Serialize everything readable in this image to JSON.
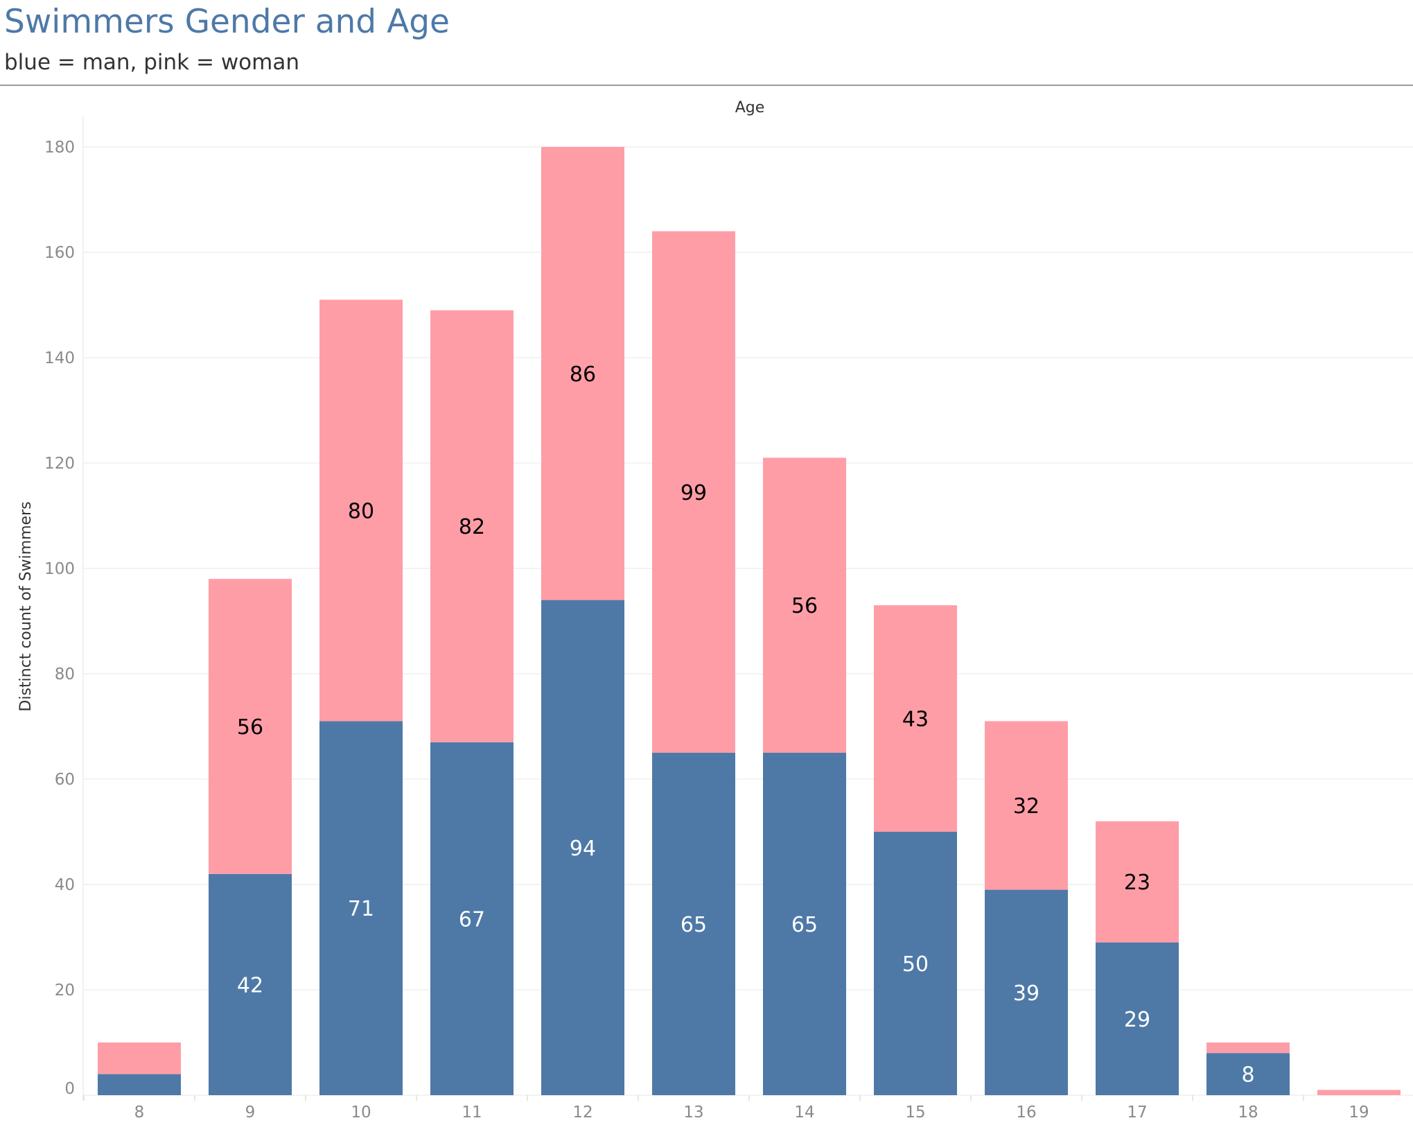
{
  "header": {
    "title": "Swimmers Gender and Age",
    "subtitle": "blue = man, pink = woman"
  },
  "chart_data": {
    "type": "bar",
    "stacked": true,
    "title": "Swimmers Gender and Age",
    "subtitle": "blue = man, pink = woman",
    "xlabel": "Age",
    "ylabel": "Distinct count of Swimmers",
    "categories": [
      "8",
      "9",
      "10",
      "11",
      "12",
      "13",
      "14",
      "15",
      "16",
      "17",
      "18",
      "19"
    ],
    "ylim": [
      0,
      180
    ],
    "yticks": [
      0,
      20,
      40,
      60,
      80,
      100,
      120,
      140,
      160,
      180
    ],
    "grid": true,
    "series": [
      {
        "color": "#4e79a7",
        "values": [
          4,
          42,
          71,
          67,
          94,
          65,
          65,
          50,
          39,
          29,
          8,
          0
        ],
        "labels": [
          "",
          "42",
          "71",
          "67",
          "94",
          "65",
          "65",
          "50",
          "39",
          "29",
          "8",
          ""
        ]
      },
      {
        "color": "#ff9da7",
        "values": [
          6,
          56,
          80,
          82,
          86,
          99,
          56,
          43,
          32,
          23,
          2,
          1
        ],
        "labels": [
          "",
          "56",
          "80",
          "82",
          "86",
          "99",
          "56",
          "43",
          "32",
          "23",
          "",
          ""
        ]
      }
    ]
  }
}
